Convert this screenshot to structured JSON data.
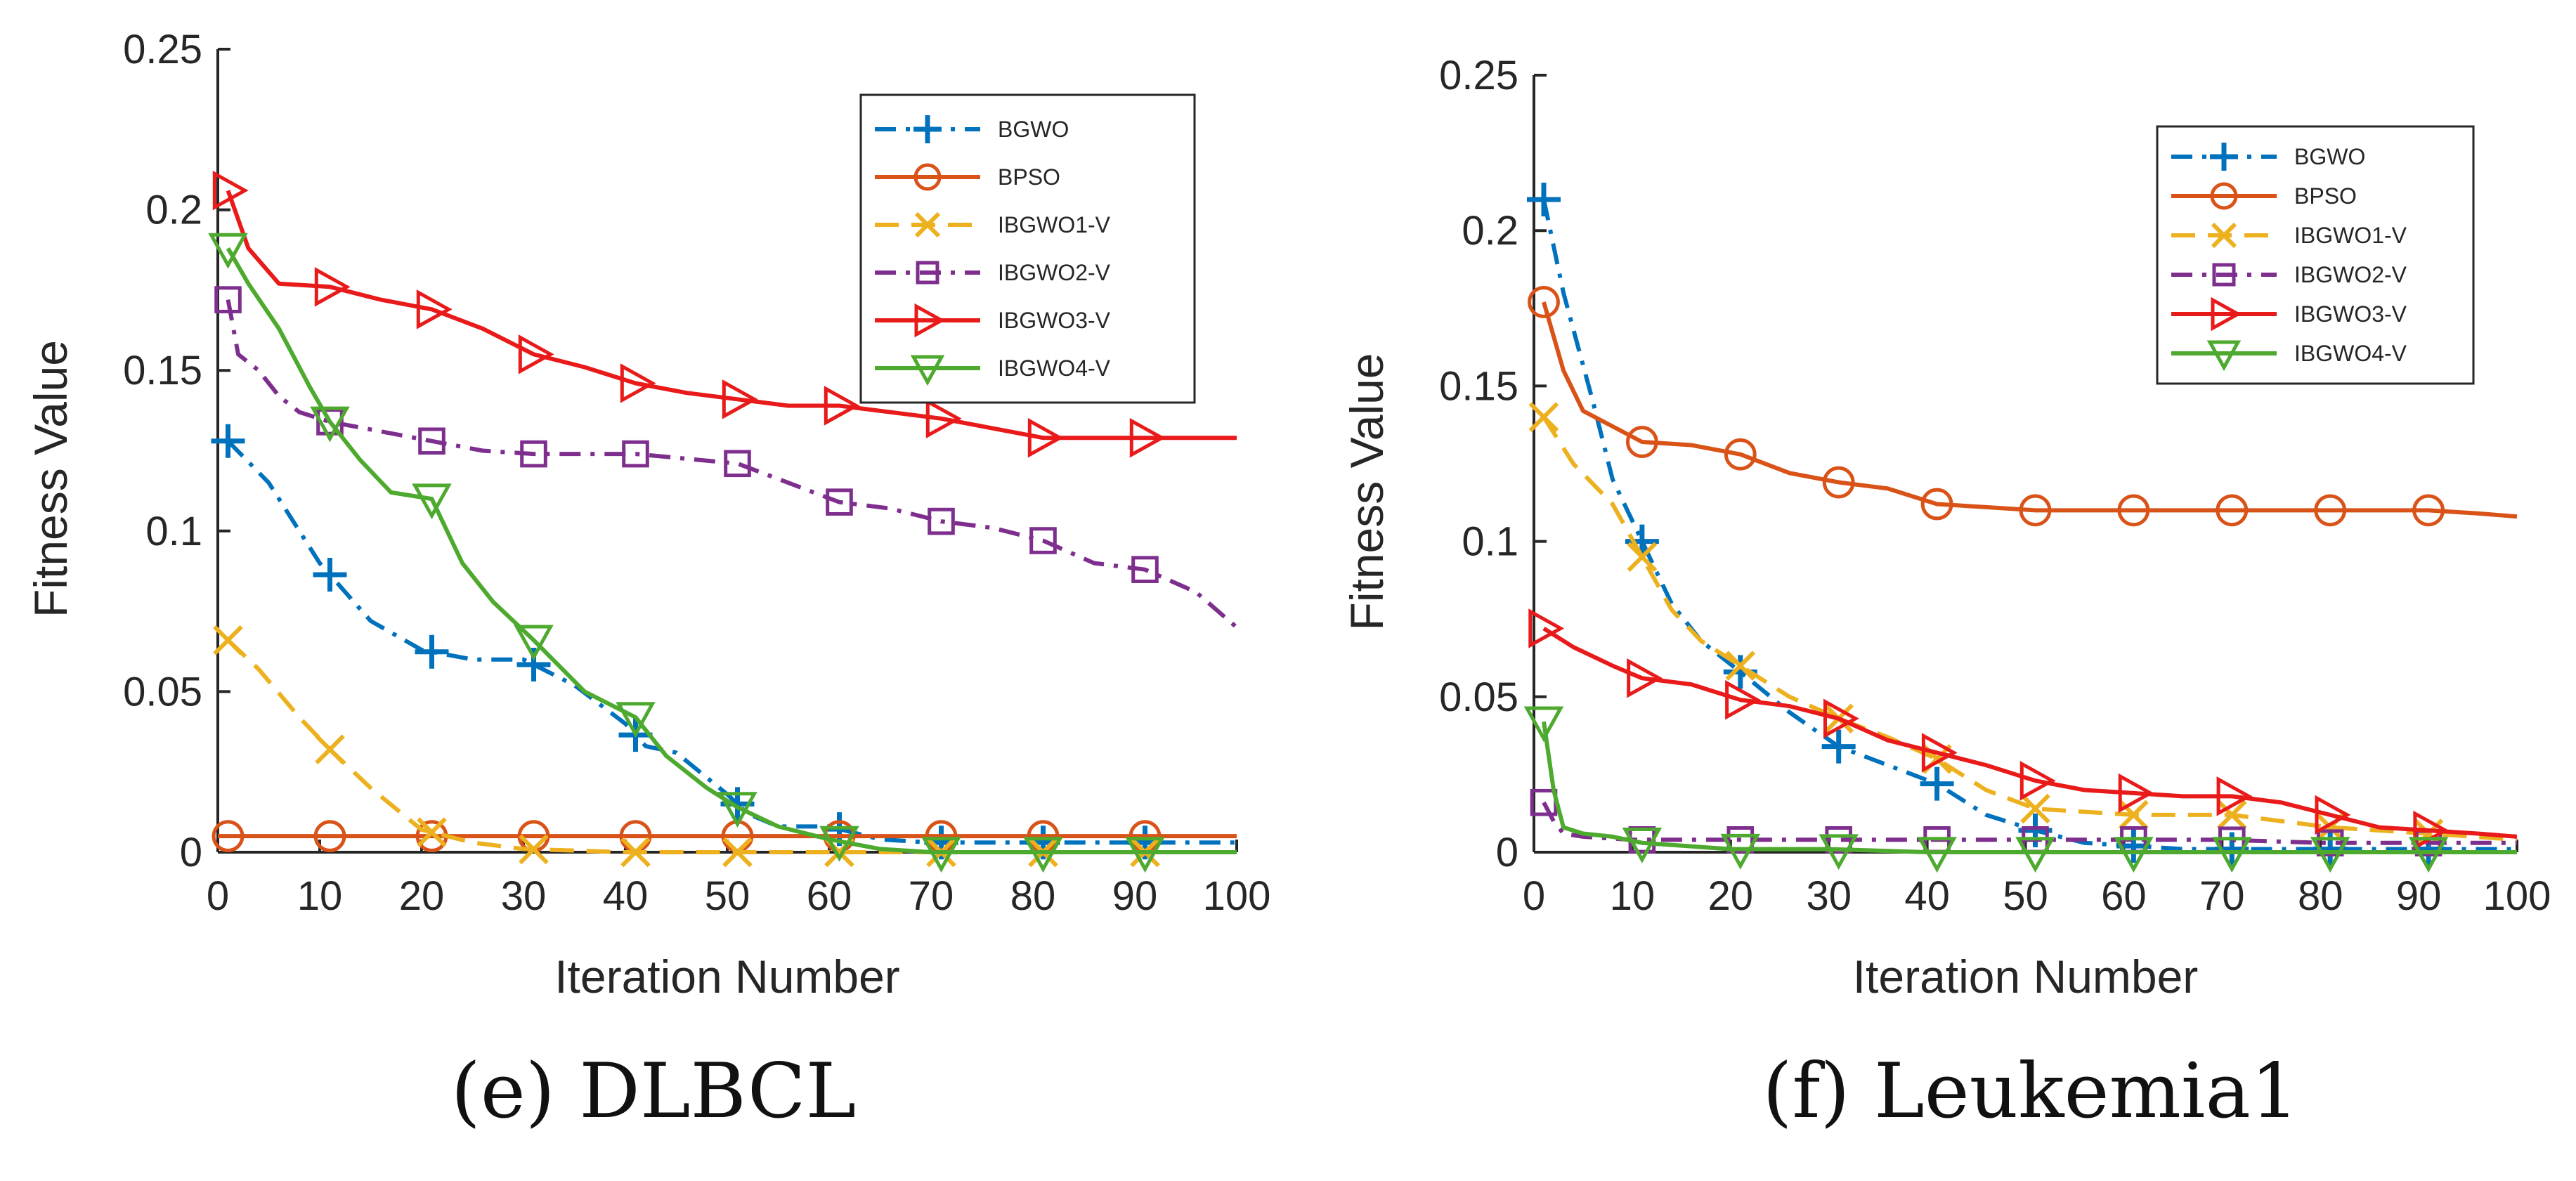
{
  "chart_data": [
    {
      "id": "chart-e",
      "type": "line",
      "caption": "(e) DLBCL",
      "xlabel": "Iteration Number",
      "ylabel": "Fitness Value",
      "xlim": [
        0,
        100
      ],
      "ylim": [
        0,
        0.25
      ],
      "xticks": [
        0,
        10,
        20,
        30,
        40,
        50,
        60,
        70,
        80,
        90,
        100
      ],
      "xtick_labels": [
        "0",
        "10",
        "20",
        "30",
        "40",
        "50",
        "60",
        "70",
        "80",
        "90",
        "100"
      ],
      "yticks": [
        0,
        0.05,
        0.1,
        0.15,
        0.2,
        0.25
      ],
      "ytick_labels": [
        "0",
        "0.05",
        "0.1",
        "0.15",
        "0.2",
        "0.25"
      ],
      "legend_position": "top-right",
      "series": [
        {
          "name": "BGWO",
          "color": "#0072BD",
          "dash": "dashdot",
          "marker": "plus",
          "x": [
            1,
            5,
            10,
            15,
            20,
            25,
            30,
            35,
            40,
            42,
            45,
            50,
            52,
            55,
            60,
            65,
            70,
            80,
            90,
            100
          ],
          "y": [
            0.128,
            0.115,
            0.09,
            0.072,
            0.063,
            0.06,
            0.06,
            0.052,
            0.04,
            0.033,
            0.031,
            0.018,
            0.012,
            0.008,
            0.008,
            0.004,
            0.003,
            0.003,
            0.003,
            0.003
          ],
          "marker_x": [
            1,
            11,
            21,
            31,
            41,
            51,
            61,
            71,
            81,
            91
          ]
        },
        {
          "name": "BPSO",
          "color": "#D95319",
          "dash": "solid",
          "marker": "circle",
          "x": [
            0,
            10,
            20,
            30,
            40,
            50,
            60,
            70,
            80,
            90,
            100
          ],
          "y": [
            0.005,
            0.005,
            0.005,
            0.005,
            0.005,
            0.005,
            0.005,
            0.005,
            0.005,
            0.005,
            0.005
          ],
          "marker_x": [
            1,
            11,
            21,
            31,
            41,
            51,
            61,
            71,
            81,
            91
          ]
        },
        {
          "name": "IBGWO1-V",
          "color": "#EDB120",
          "dash": "dashed",
          "marker": "x",
          "x": [
            1,
            4,
            8,
            11,
            15,
            20,
            25,
            30,
            35,
            40,
            50,
            60,
            70,
            80,
            90,
            100
          ],
          "y": [
            0.066,
            0.057,
            0.042,
            0.032,
            0.02,
            0.007,
            0.003,
            0.001,
            0.0005,
            0,
            0,
            0,
            0,
            0,
            0,
            0
          ],
          "marker_x": [
            1,
            11,
            21,
            31,
            41,
            51,
            61,
            71,
            81,
            91
          ]
        },
        {
          "name": "IBGWO2-V",
          "color": "#7E2F8E",
          "dash": "dashdot",
          "marker": "square",
          "x": [
            1,
            2,
            4,
            6,
            8,
            11,
            16,
            21,
            26,
            31,
            41,
            51,
            56,
            61,
            66,
            71,
            76,
            81,
            86,
            91,
            96,
            100
          ],
          "y": [
            0.172,
            0.155,
            0.15,
            0.142,
            0.137,
            0.134,
            0.131,
            0.128,
            0.125,
            0.124,
            0.124,
            0.121,
            0.115,
            0.109,
            0.107,
            0.103,
            0.101,
            0.097,
            0.09,
            0.088,
            0.081,
            0.07
          ],
          "marker_x": [
            1,
            11,
            21,
            31,
            41,
            51,
            61,
            71,
            81,
            91
          ]
        },
        {
          "name": "IBGWO3-V",
          "color": "#E81A1A",
          "dash": "solid",
          "marker": "triangle-right",
          "x": [
            1,
            3,
            6,
            11,
            16,
            21,
            26,
            31,
            36,
            41,
            46,
            51,
            56,
            61,
            71,
            81,
            91,
            100
          ],
          "y": [
            0.206,
            0.188,
            0.177,
            0.176,
            0.172,
            0.169,
            0.163,
            0.155,
            0.151,
            0.146,
            0.143,
            0.141,
            0.139,
            0.139,
            0.135,
            0.129,
            0.129,
            0.129
          ],
          "marker_x": [
            1,
            11,
            21,
            31,
            41,
            51,
            61,
            71,
            81,
            91
          ]
        },
        {
          "name": "IBGWO4-V",
          "color": "#4DAA2E",
          "dash": "solid",
          "marker": "triangle-down",
          "x": [
            1,
            3,
            6,
            9,
            11,
            14,
            17,
            21,
            24,
            27,
            31,
            36,
            41,
            44,
            48,
            51,
            55,
            60,
            65,
            70,
            80,
            90,
            100
          ],
          "y": [
            0.188,
            0.177,
            0.163,
            0.145,
            0.134,
            0.122,
            0.112,
            0.11,
            0.09,
            0.078,
            0.066,
            0.05,
            0.042,
            0.03,
            0.02,
            0.014,
            0.008,
            0.004,
            0.001,
            0,
            0,
            0,
            0
          ],
          "marker_x": [
            1,
            11,
            21,
            31,
            41,
            51,
            61,
            71,
            81,
            91
          ]
        }
      ]
    },
    {
      "id": "chart-f",
      "type": "line",
      "caption": "(f) Leukemia1",
      "xlabel": "Iteration Number",
      "ylabel": "Fitness Value",
      "xlim": [
        0,
        100
      ],
      "ylim": [
        0,
        0.25
      ],
      "xticks": [
        0,
        10,
        20,
        30,
        40,
        50,
        60,
        70,
        80,
        90,
        100
      ],
      "xtick_labels": [
        "0",
        "10",
        "20",
        "30",
        "40",
        "50",
        "60",
        "70",
        "80",
        "90",
        "100"
      ],
      "yticks": [
        0,
        0.05,
        0.1,
        0.15,
        0.2,
        0.25
      ],
      "ytick_labels": [
        "0",
        "0.05",
        "0.1",
        "0.15",
        "0.2",
        "0.25"
      ],
      "legend_position": "top-right",
      "series": [
        {
          "name": "BGWO",
          "color": "#0072BD",
          "dash": "dashdot",
          "marker": "plus",
          "x": [
            1,
            3,
            6,
            8,
            11,
            14,
            17,
            21,
            26,
            31,
            36,
            41,
            46,
            51,
            56,
            61,
            66,
            71,
            81,
            91,
            100
          ],
          "y": [
            0.21,
            0.18,
            0.145,
            0.12,
            0.1,
            0.08,
            0.068,
            0.058,
            0.045,
            0.034,
            0.028,
            0.022,
            0.012,
            0.007,
            0.003,
            0.002,
            0.001,
            0.001,
            0.001,
            0.001,
            0.001
          ],
          "marker_x": [
            1,
            11,
            21,
            31,
            41,
            51,
            61,
            71,
            81,
            91
          ]
        },
        {
          "name": "BPSO",
          "color": "#D95319",
          "dash": "solid",
          "marker": "circle",
          "x": [
            1,
            3,
            5,
            8,
            11,
            16,
            21,
            26,
            31,
            36,
            41,
            46,
            51,
            61,
            71,
            81,
            91,
            96,
            100
          ],
          "y": [
            0.177,
            0.155,
            0.142,
            0.137,
            0.132,
            0.131,
            0.128,
            0.122,
            0.119,
            0.117,
            0.112,
            0.111,
            0.11,
            0.11,
            0.11,
            0.11,
            0.11,
            0.109,
            0.108
          ],
          "marker_x": [
            1,
            11,
            21,
            31,
            41,
            51,
            61,
            71,
            81,
            91
          ]
        },
        {
          "name": "IBGWO1-V",
          "color": "#EDB120",
          "dash": "dashed",
          "marker": "x",
          "x": [
            1,
            4,
            8,
            11,
            14,
            17,
            21,
            26,
            31,
            36,
            41,
            46,
            51,
            61,
            71,
            81,
            91,
            100
          ],
          "y": [
            0.14,
            0.125,
            0.112,
            0.095,
            0.078,
            0.068,
            0.06,
            0.05,
            0.043,
            0.037,
            0.03,
            0.02,
            0.014,
            0.012,
            0.012,
            0.008,
            0.006,
            0.004
          ],
          "marker_x": [
            1,
            11,
            21,
            31,
            41,
            51,
            61,
            71,
            81,
            91
          ]
        },
        {
          "name": "IBGWO2-V",
          "color": "#7E2F8E",
          "dash": "dashdot",
          "marker": "square",
          "x": [
            1,
            2,
            3,
            5,
            10,
            20,
            30,
            40,
            50,
            60,
            70,
            80,
            90,
            100
          ],
          "y": [
            0.016,
            0.01,
            0.006,
            0.005,
            0.004,
            0.004,
            0.004,
            0.004,
            0.004,
            0.004,
            0.004,
            0.003,
            0.003,
            0.003
          ],
          "marker_x": [
            1,
            11,
            21,
            31,
            41,
            51,
            61,
            71,
            81,
            91
          ]
        },
        {
          "name": "IBGWO3-V",
          "color": "#E81A1A",
          "dash": "solid",
          "marker": "triangle-right",
          "x": [
            1,
            4,
            8,
            11,
            16,
            21,
            26,
            31,
            36,
            41,
            46,
            51,
            56,
            61,
            66,
            71,
            76,
            81,
            86,
            91,
            96,
            100
          ],
          "y": [
            0.072,
            0.066,
            0.06,
            0.056,
            0.054,
            0.049,
            0.047,
            0.043,
            0.036,
            0.032,
            0.028,
            0.023,
            0.02,
            0.019,
            0.018,
            0.018,
            0.016,
            0.012,
            0.008,
            0.007,
            0.006,
            0.005
          ],
          "marker_x": [
            1,
            11,
            21,
            31,
            41,
            51,
            61,
            71,
            81,
            91
          ]
        },
        {
          "name": "IBGWO4-V",
          "color": "#4DAA2E",
          "dash": "solid",
          "marker": "triangle-down",
          "x": [
            1,
            2,
            3,
            5,
            8,
            11,
            20,
            30,
            40,
            50,
            60,
            70,
            80,
            90,
            100
          ],
          "y": [
            0.042,
            0.02,
            0.008,
            0.006,
            0.005,
            0.003,
            0.001,
            0.001,
            0,
            0,
            0,
            0,
            0,
            0,
            0
          ],
          "marker_x": [
            1,
            11,
            21,
            31,
            41,
            51,
            61,
            71,
            81,
            91
          ]
        }
      ]
    }
  ]
}
